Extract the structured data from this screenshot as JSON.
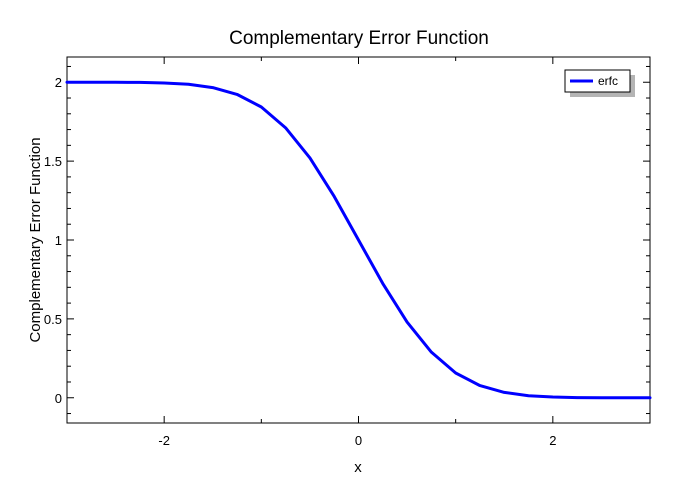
{
  "chart_data": {
    "type": "line",
    "title": "Complementary Error Function",
    "xlabel": "x",
    "ylabel": "Complementary Error Function",
    "xlim": [
      -3,
      3
    ],
    "ylim": [
      -0.16,
      2.16
    ],
    "xticks": [
      -2,
      0,
      2
    ],
    "xtick_labels": [
      "-2",
      "0",
      "2"
    ],
    "yticks": [
      0,
      0.5,
      1,
      1.5,
      2
    ],
    "ytick_labels": [
      "0",
      "0.5",
      "1",
      "1.5",
      "2"
    ],
    "grid": false,
    "legend_position": "top-right",
    "series": [
      {
        "name": "erfc",
        "color": "#0000ff",
        "x": [
          -3,
          -2.75,
          -2.5,
          -2.25,
          -2,
          -1.75,
          -1.5,
          -1.25,
          -1,
          -0.75,
          -0.5,
          -0.25,
          0,
          0.25,
          0.5,
          0.75,
          1,
          1.25,
          1.5,
          1.75,
          2,
          2.25,
          2.5,
          2.75,
          3
        ],
        "values": [
          2.0,
          2.0,
          2.0,
          1.999,
          1.995,
          1.987,
          1.966,
          1.923,
          1.843,
          1.711,
          1.52,
          1.276,
          1.0,
          0.724,
          0.48,
          0.289,
          0.157,
          0.077,
          0.034,
          0.013,
          0.005,
          0.001,
          0.0,
          0.0,
          0.0
        ]
      }
    ]
  }
}
